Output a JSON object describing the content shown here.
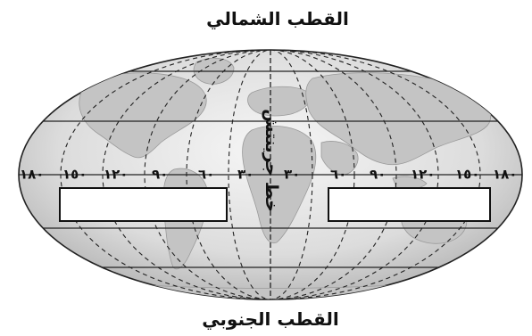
{
  "diagram": {
    "north_pole_label": "القطب الشمالي",
    "south_pole_label": "القطب الجنوبي",
    "greenwich_label": "خط جرينتش",
    "west_longitudes": [
      "١٨٠",
      "١٥٠",
      "١٢٠",
      "٩٠",
      "٦٠",
      "٣٠"
    ],
    "east_longitudes": [
      "٣٠",
      "٦٠",
      "٩٠",
      "١٢٠",
      "١٥٠",
      "١٨٠"
    ],
    "answer_box_left": "",
    "answer_box_right": ""
  }
}
